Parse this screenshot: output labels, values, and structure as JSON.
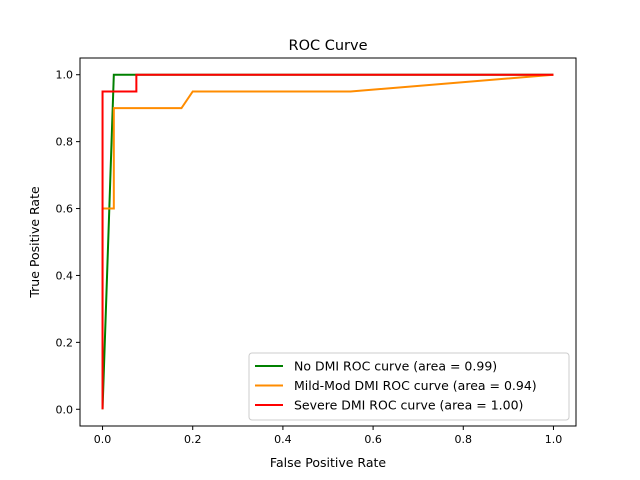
{
  "chart_data": {
    "type": "line",
    "title": "ROC Curve",
    "xlabel": "False Positive Rate",
    "ylabel": "True Positive Rate",
    "xlim": [
      -0.05,
      1.05
    ],
    "ylim": [
      -0.05,
      1.05
    ],
    "xticks": [
      "0.0",
      "0.2",
      "0.4",
      "0.6",
      "0.8",
      "1.0"
    ],
    "yticks": [
      "0.0",
      "0.2",
      "0.4",
      "0.6",
      "0.8",
      "1.0"
    ],
    "grid": false,
    "legend_position": "lower-right",
    "series": [
      {
        "name": "No DMI ROC curve (area = 0.99)",
        "color": "#008000",
        "x": [
          0,
          0.025,
          0.075,
          1
        ],
        "y": [
          0,
          1,
          1,
          1
        ]
      },
      {
        "name": "Mild-Mod DMI ROC curve (area = 0.94)",
        "color": "#ff8c00",
        "x": [
          0,
          0,
          0.025,
          0.025,
          0.175,
          0.2,
          0.55,
          1
        ],
        "y": [
          0,
          0.6,
          0.6,
          0.9,
          0.9,
          0.95,
          0.95,
          1
        ]
      },
      {
        "name": "Severe DMI ROC curve (area = 1.00)",
        "color": "#ff0000",
        "x": [
          0,
          0,
          0.075,
          0.075,
          1
        ],
        "y": [
          0,
          0.95,
          0.95,
          1,
          1
        ]
      }
    ]
  }
}
